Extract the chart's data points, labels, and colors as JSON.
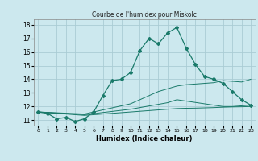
{
  "title": "Courbe de l'humidex pour Miskolc",
  "xlabel": "Humidex (Indice chaleur)",
  "bg_color": "#cce8ee",
  "line_color": "#1a7a6a",
  "grid_color": "#aaccd4",
  "xlim": [
    -0.5,
    23.5
  ],
  "ylim": [
    10.6,
    18.4
  ],
  "yticks": [
    11,
    12,
    13,
    14,
    15,
    16,
    17,
    18
  ],
  "xticks": [
    0,
    1,
    2,
    3,
    4,
    5,
    6,
    7,
    8,
    9,
    10,
    11,
    12,
    13,
    14,
    15,
    16,
    17,
    18,
    19,
    20,
    21,
    22,
    23
  ],
  "curve1_x": [
    0,
    1,
    2,
    3,
    4,
    5,
    6,
    7,
    8,
    9,
    10,
    11,
    12,
    13,
    14,
    15,
    16,
    17,
    18,
    19,
    20,
    21,
    22,
    23
  ],
  "curve1_y": [
    11.6,
    11.5,
    11.1,
    11.2,
    10.9,
    11.1,
    11.6,
    12.8,
    13.9,
    14.0,
    14.5,
    16.1,
    17.0,
    16.6,
    17.4,
    17.8,
    16.3,
    15.1,
    14.2,
    14.0,
    13.7,
    13.1,
    12.5,
    12.1
  ],
  "curve2_x": [
    0,
    1,
    2,
    3,
    4,
    5,
    6,
    7,
    8,
    9,
    10,
    11,
    12,
    13,
    14,
    15,
    16,
    17,
    18,
    19,
    20,
    21,
    22,
    23
  ],
  "curve2_y": [
    11.6,
    11.57,
    11.54,
    11.51,
    11.48,
    11.45,
    11.6,
    11.75,
    11.9,
    12.05,
    12.2,
    12.5,
    12.8,
    13.1,
    13.3,
    13.5,
    13.6,
    13.65,
    13.7,
    13.75,
    13.9,
    13.85,
    13.8,
    14.0
  ],
  "curve3_x": [
    0,
    1,
    2,
    3,
    4,
    5,
    6,
    7,
    8,
    9,
    10,
    11,
    12,
    13,
    14,
    15,
    16,
    17,
    18,
    19,
    20,
    21,
    22,
    23
  ],
  "curve3_y": [
    11.6,
    11.56,
    11.52,
    11.48,
    11.44,
    11.4,
    11.48,
    11.56,
    11.64,
    11.72,
    11.8,
    11.92,
    12.04,
    12.16,
    12.28,
    12.5,
    12.4,
    12.3,
    12.2,
    12.1,
    12.0,
    12.0,
    12.05,
    12.1
  ],
  "curve4_x": [
    0,
    1,
    2,
    3,
    4,
    5,
    6,
    7,
    8,
    9,
    10,
    11,
    12,
    13,
    14,
    15,
    16,
    17,
    18,
    19,
    20,
    21,
    22,
    23
  ],
  "curve4_y": [
    11.6,
    11.55,
    11.5,
    11.45,
    11.4,
    11.35,
    11.4,
    11.45,
    11.5,
    11.55,
    11.6,
    11.65,
    11.7,
    11.75,
    11.8,
    11.85,
    11.87,
    11.88,
    11.9,
    11.92,
    11.95,
    11.97,
    11.98,
    12.0
  ]
}
